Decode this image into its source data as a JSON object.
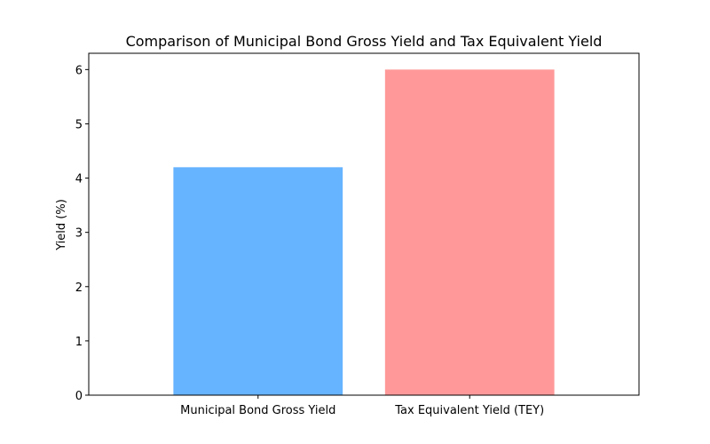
{
  "chart_data": {
    "type": "bar",
    "title": "Comparison of Municipal Bond Gross Yield and Tax Equivalent Yield",
    "xlabel": "",
    "ylabel": "Yield (%)",
    "categories": [
      "Municipal Bond Gross Yield",
      "Tax Equivalent Yield (TEY)"
    ],
    "values": [
      4.2,
      6.0
    ],
    "colors": [
      "#66b3ff",
      "#ff9999"
    ],
    "ylim": [
      0,
      6.3
    ],
    "yticks": [
      0,
      1,
      2,
      3,
      4,
      5,
      6
    ],
    "grid": false,
    "legend": "none"
  }
}
